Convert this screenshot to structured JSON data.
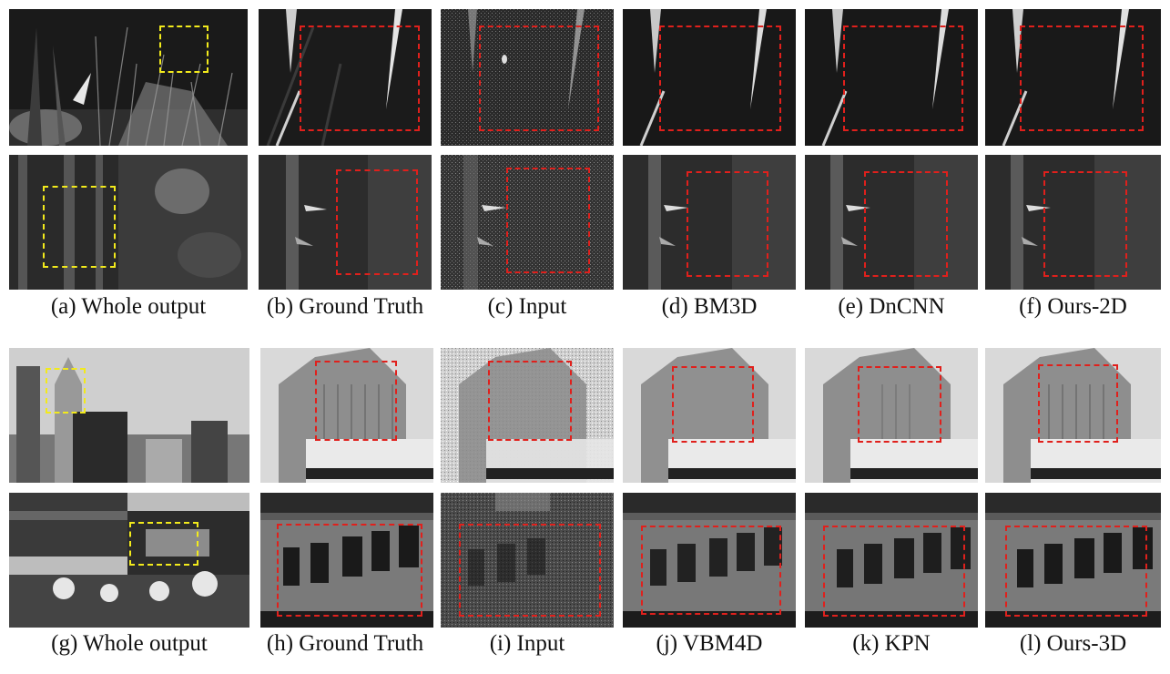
{
  "figure": {
    "top_panel": {
      "captions": [
        "(a) Whole output",
        "(b) Ground Truth",
        "(c) Input",
        "(d) BM3D",
        "(e) DnCNN",
        "(f) Ours-2D"
      ]
    },
    "bottom_panel": {
      "captions": [
        "(g) Whole output",
        "(h) Ground Truth",
        "(i) Input",
        "(j) VBM4D",
        "(k) KPN",
        "(l) Ours-3D"
      ]
    }
  },
  "colors": {
    "zoom_box": "#e0201c",
    "region_box": "#f2ea1c",
    "caption_text": "#111111"
  }
}
